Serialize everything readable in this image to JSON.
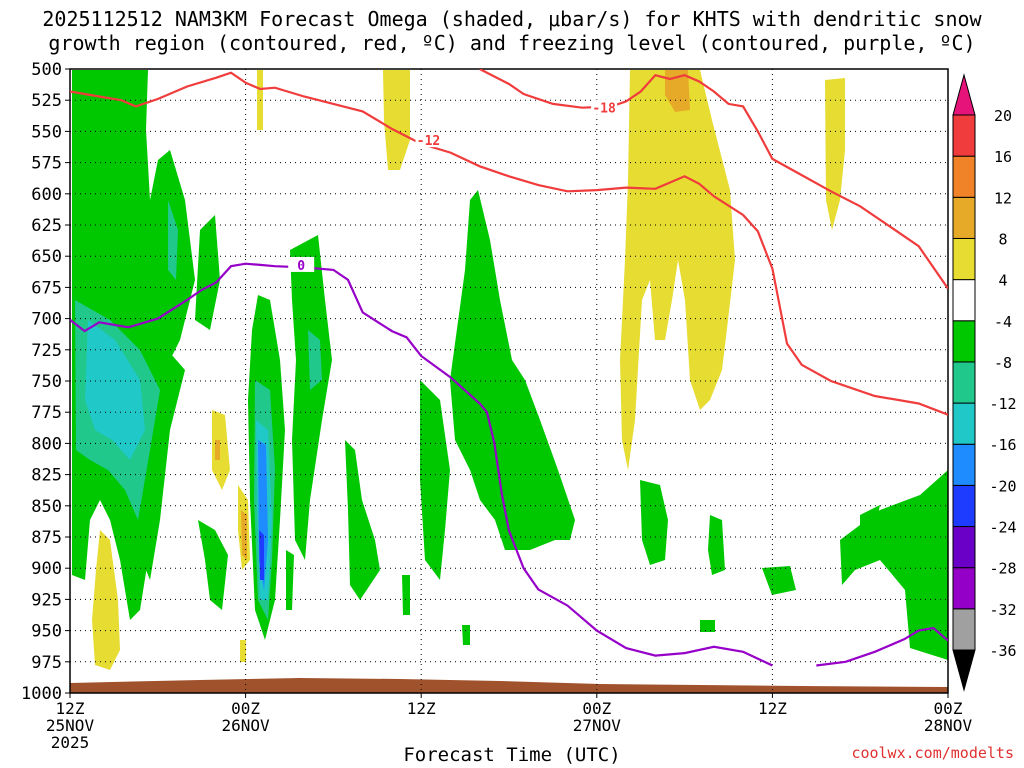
{
  "title": {
    "line1": "2025112512 NAM3KM Forecast Omega (shaded, μbar/s) for KHTS with dendritic snow",
    "line2": "growth region (contoured, red, ºC) and freezing level (contoured, purple, ºC)"
  },
  "credit": "coolwx.com/modelts",
  "chart_data": {
    "type": "heatmap",
    "title": "2025112512 NAM3KM Forecast Omega (shaded, μbar/s) for KHTS with dendritic snow growth region (contoured, red, ºC) and freezing level (contoured, purple, ºC)",
    "xlabel": "Forecast Time (UTC)",
    "ylabel": "",
    "x_ticks": [
      {
        "hour": 0,
        "label": "12Z",
        "sub": "25NOV",
        "sub2": "2025"
      },
      {
        "hour": 12,
        "label": "00Z",
        "sub": "26NOV",
        "sub2": ""
      },
      {
        "hour": 24,
        "label": "12Z",
        "sub": "",
        "sub2": ""
      },
      {
        "hour": 36,
        "label": "00Z",
        "sub": "27NOV",
        "sub2": ""
      },
      {
        "hour": 48,
        "label": "12Z",
        "sub": "",
        "sub2": ""
      },
      {
        "hour": 60,
        "label": "00Z",
        "sub": "28NOV",
        "sub2": ""
      }
    ],
    "xlim": [
      0,
      60
    ],
    "y_ticks": [
      500,
      525,
      550,
      575,
      600,
      625,
      650,
      675,
      700,
      725,
      750,
      775,
      800,
      825,
      850,
      875,
      900,
      925,
      950,
      975,
      1000
    ],
    "ylim": [
      500,
      1000
    ],
    "grid": true,
    "colorbar": {
      "levels": [
        -36,
        -32,
        -28,
        -24,
        -20,
        -16,
        -12,
        -8,
        -4,
        4,
        8,
        12,
        16,
        20
      ],
      "colors": [
        "#000000",
        "#a0a0a0",
        "#9400c8",
        "#6a00c8",
        "#1e3cff",
        "#1e8cff",
        "#20c8c8",
        "#20c88c",
        "#00c800",
        "#ffffff",
        "#e6dc32",
        "#e6aa28",
        "#f08228",
        "#f03c3c",
        "#e6147a"
      ],
      "units": "μbar/s"
    },
    "contours": [
      {
        "label": "-12",
        "color": "#f03c3c",
        "points": [
          [
            0,
            518
          ],
          [
            2,
            522
          ],
          [
            3.5,
            525
          ],
          [
            4.5,
            530
          ],
          [
            6,
            524
          ],
          [
            8,
            514
          ],
          [
            10,
            507
          ],
          [
            11,
            503
          ],
          [
            12,
            511
          ],
          [
            13,
            516
          ],
          [
            14,
            515
          ],
          [
            16,
            522
          ],
          [
            18,
            528
          ],
          [
            20,
            534
          ],
          [
            22,
            548
          ],
          [
            24,
            560
          ],
          [
            26,
            567
          ],
          [
            28,
            578
          ],
          [
            30,
            586
          ],
          [
            32,
            593
          ],
          [
            34,
            598
          ],
          [
            36,
            597
          ],
          [
            38,
            595
          ],
          [
            40,
            596
          ],
          [
            42,
            586
          ],
          [
            43,
            592
          ],
          [
            44,
            602
          ],
          [
            46,
            617
          ],
          [
            47,
            630
          ],
          [
            48,
            660
          ],
          [
            48.5,
            690
          ],
          [
            49,
            720
          ],
          [
            50,
            737
          ],
          [
            52,
            750
          ],
          [
            55,
            762
          ],
          [
            58,
            768
          ],
          [
            60,
            777
          ]
        ]
      },
      {
        "label": "-18",
        "color": "#f03c3c",
        "points": [
          [
            28,
            500
          ],
          [
            30,
            512
          ],
          [
            31,
            520
          ],
          [
            33,
            528
          ],
          [
            35,
            531
          ],
          [
            37,
            530
          ],
          [
            38,
            526
          ],
          [
            39,
            518
          ],
          [
            40,
            505
          ],
          [
            41,
            508
          ],
          [
            42,
            505
          ],
          [
            43,
            510
          ],
          [
            44,
            518
          ],
          [
            45,
            528
          ],
          [
            46,
            530
          ],
          [
            47,
            550
          ],
          [
            48,
            572
          ],
          [
            50,
            585
          ],
          [
            52,
            598
          ],
          [
            54,
            610
          ],
          [
            56,
            626
          ],
          [
            58,
            642
          ],
          [
            60,
            676
          ]
        ]
      },
      {
        "label": "0",
        "color": "#9600c8",
        "points": [
          [
            0,
            701
          ],
          [
            1,
            710
          ],
          [
            2,
            703
          ],
          [
            4,
            707
          ],
          [
            6,
            700
          ],
          [
            8,
            685
          ],
          [
            9,
            677
          ],
          [
            10,
            671
          ],
          [
            11,
            658
          ],
          [
            12,
            656
          ],
          [
            13,
            657
          ],
          [
            14,
            658
          ],
          [
            16,
            659
          ],
          [
            18,
            661
          ],
          [
            19,
            669
          ],
          [
            20,
            695
          ],
          [
            22,
            710
          ],
          [
            23,
            715
          ],
          [
            24,
            730
          ],
          [
            26,
            747
          ],
          [
            28,
            768
          ],
          [
            28.5,
            775
          ],
          [
            29,
            800
          ],
          [
            29.5,
            840
          ],
          [
            30,
            870
          ],
          [
            31,
            900
          ],
          [
            32,
            917
          ],
          [
            34,
            930
          ],
          [
            36,
            950
          ],
          [
            38,
            964
          ],
          [
            40,
            970
          ],
          [
            42,
            968
          ],
          [
            44,
            963
          ],
          [
            46,
            967
          ],
          [
            48,
            978
          ]
        ]
      },
      {
        "label": "",
        "color": "#9600c8",
        "points": [
          [
            51,
            978
          ],
          [
            53,
            975
          ],
          [
            55,
            967
          ],
          [
            57,
            957
          ],
          [
            58,
            950
          ],
          [
            59,
            948
          ],
          [
            60,
            958
          ]
        ]
      }
    ]
  }
}
